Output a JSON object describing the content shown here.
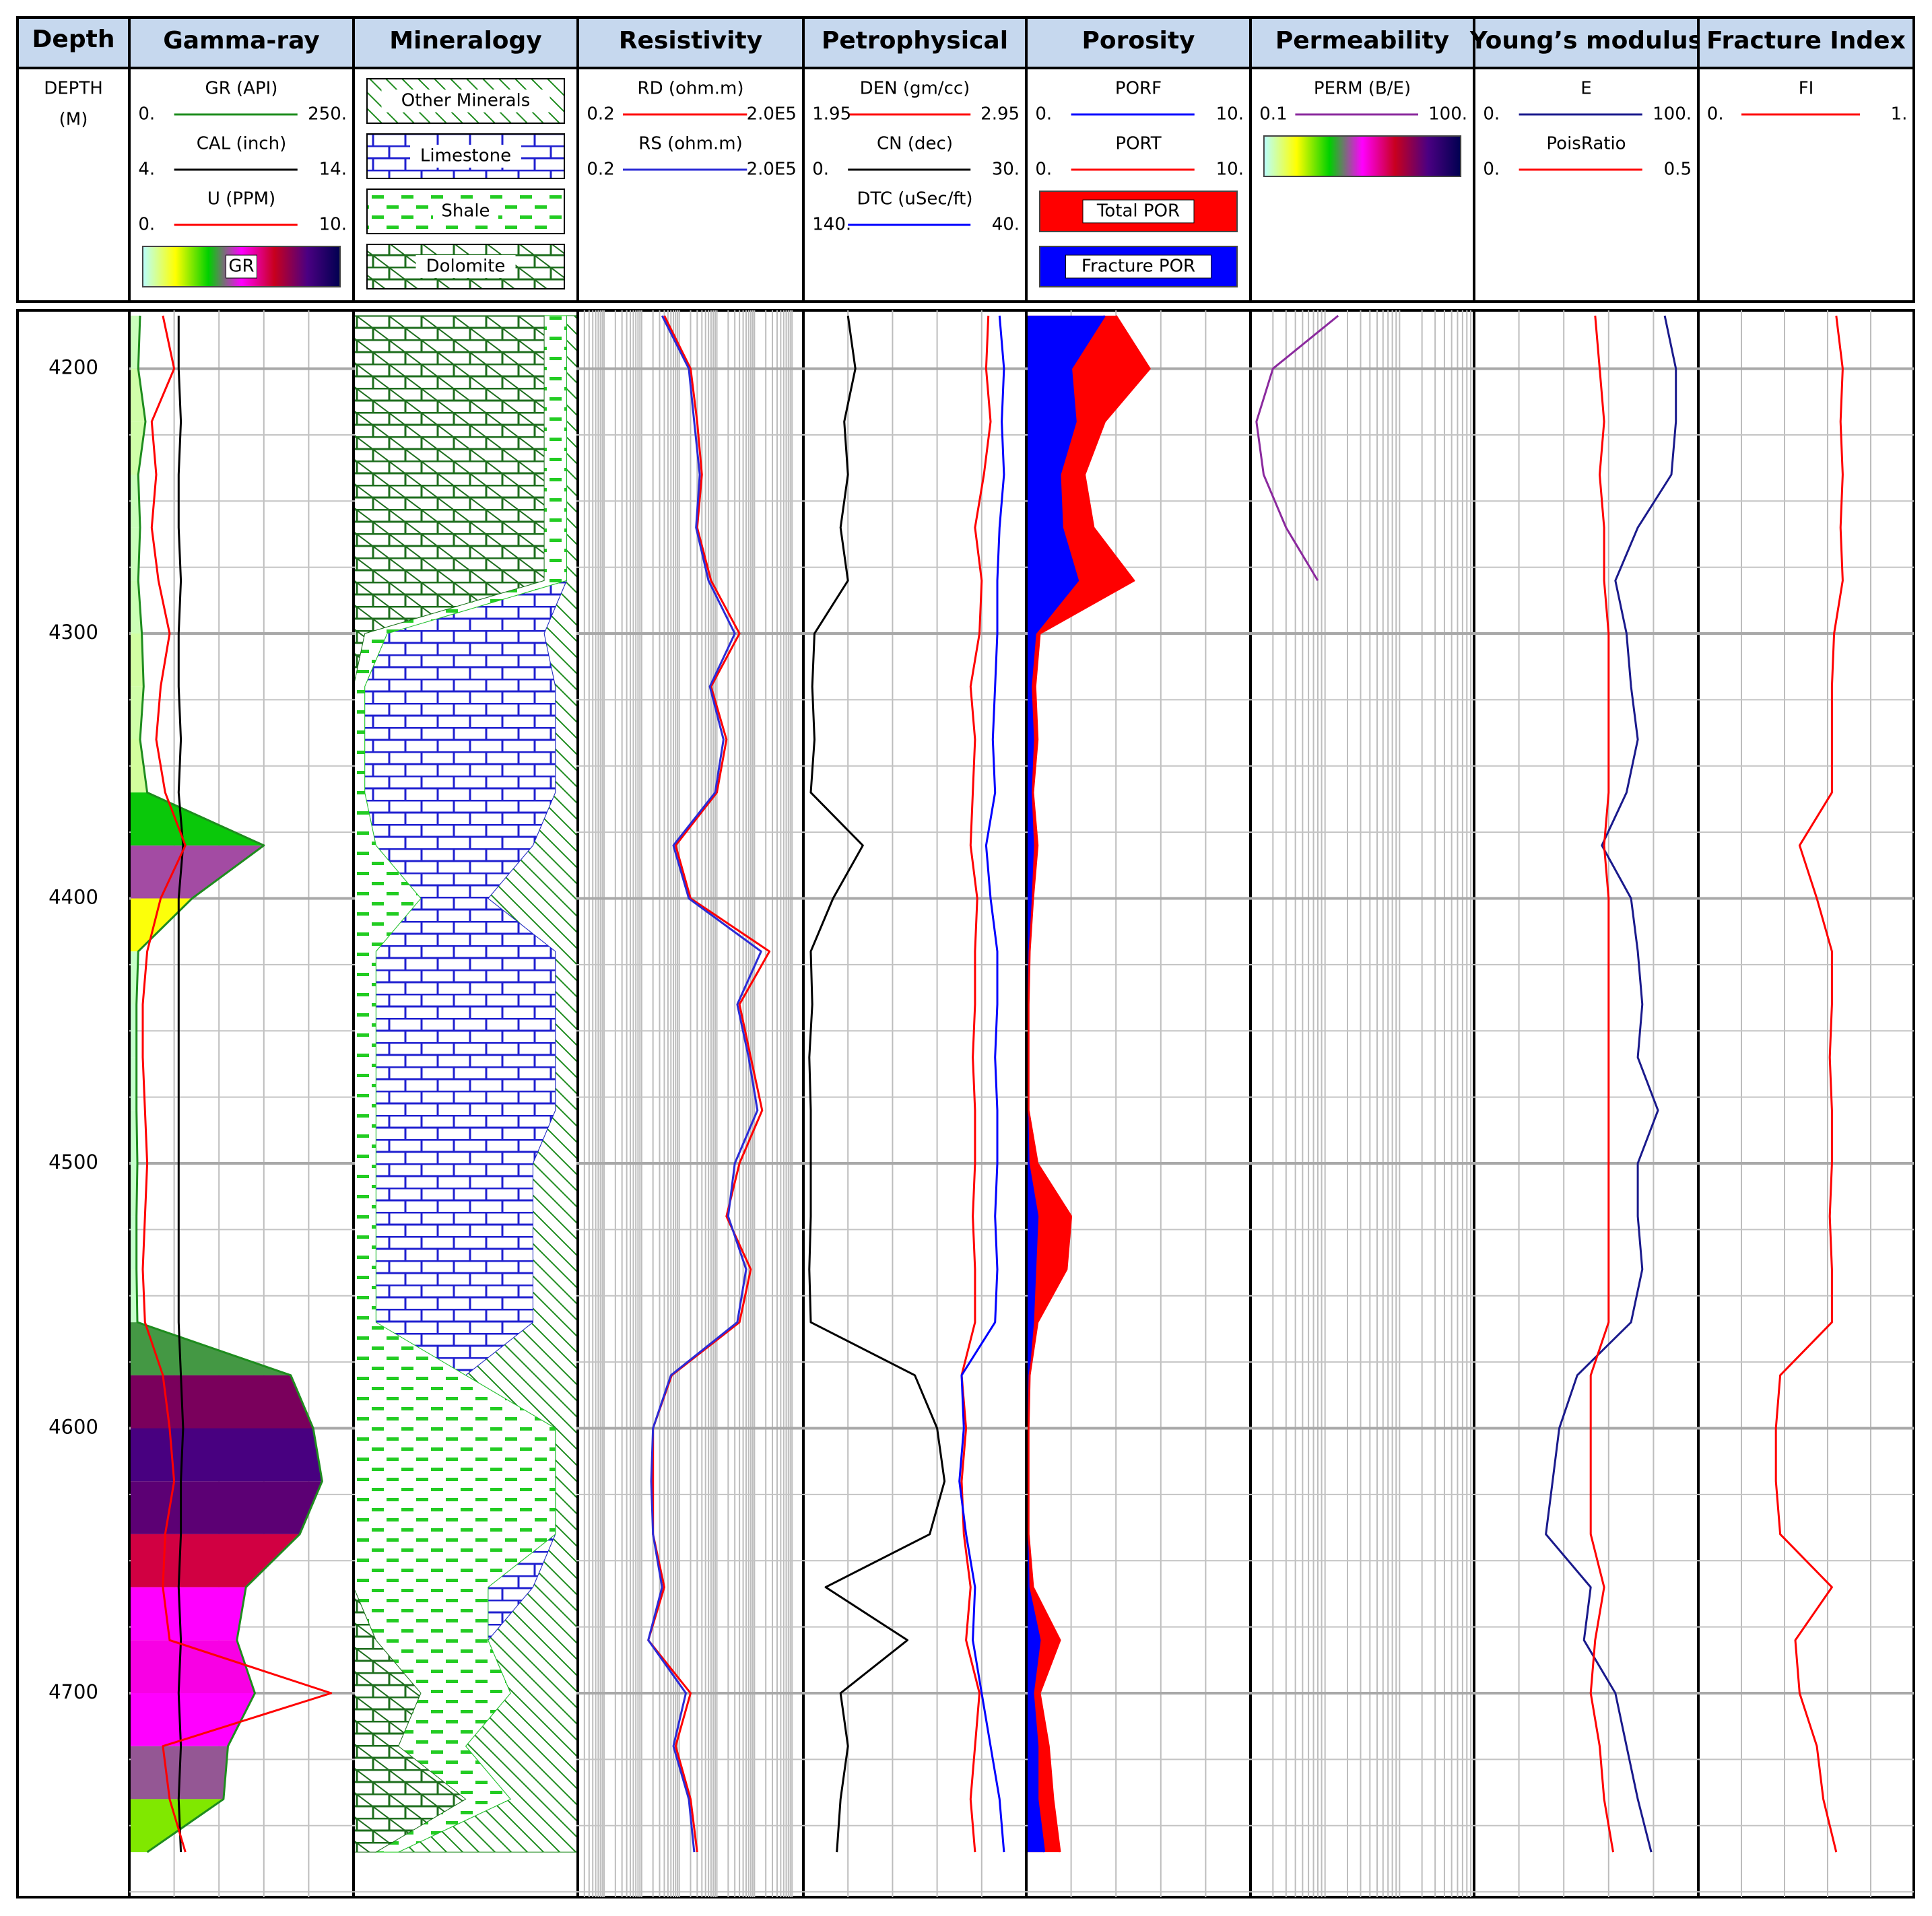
{
  "chart_data": {
    "type": "well-log",
    "depth_track": {
      "title": "Depth",
      "label": "DEPTH",
      "unit": "(M)"
    },
    "ylim": [
      4178,
      4777
    ],
    "yticks": [
      4200,
      4300,
      4400,
      4500,
      4600,
      4700
    ],
    "minor_yticks": [
      4200,
      4225,
      4250,
      4275,
      4300,
      4325,
      4350,
      4375,
      4400,
      4425,
      4450,
      4475,
      4500,
      4525,
      4550,
      4575,
      4600,
      4625,
      4650,
      4675,
      4700,
      4725,
      4750,
      4775
    ],
    "grid": true,
    "x": [
      4180,
      4200,
      4220,
      4240,
      4260,
      4280,
      4300,
      4320,
      4340,
      4360,
      4380,
      4400,
      4420,
      4440,
      4460,
      4480,
      4500,
      4520,
      4540,
      4560,
      4580,
      4600,
      4620,
      4640,
      4660,
      4680,
      4700,
      4720,
      4740,
      4760
    ],
    "tracks": [
      {
        "title": "Gamma-ray",
        "curves": [
          {
            "name": "GR (API)",
            "color": "#1e8c1e",
            "xlim": [
              0,
              250
            ],
            "xticks": [
              {
                "value": 0,
                "label": "0."
              },
              {
                "value": 250,
                "label": "250."
              }
            ],
            "values": [
              12,
              10,
              18,
              10,
              12,
              10,
              14,
              16,
              12,
              20,
              150,
              70,
              10,
              8,
              8,
              8,
              9,
              8,
              8,
              9,
              180,
              205,
              215,
              190,
              130,
              120,
              140,
              110,
              105,
              20
            ]
          },
          {
            "name": "CAL (inch)",
            "color": "#000000",
            "xlim": [
              4,
              14
            ],
            "xticks": [
              {
                "value": 4,
                "label": "4."
              },
              {
                "value": 14,
                "label": "14."
              }
            ],
            "values": [
              6.2,
              6.2,
              6.3,
              6.2,
              6.2,
              6.3,
              6.2,
              6.2,
              6.3,
              6.2,
              6.4,
              6.2,
              6.2,
              6.2,
              6.2,
              6.2,
              6.2,
              6.2,
              6.2,
              6.2,
              6.3,
              6.4,
              6.3,
              6.3,
              6.2,
              6.3,
              6.2,
              6.3,
              6.2,
              6.3
            ]
          },
          {
            "name": "U (PPM)",
            "color": "#ff0000",
            "xlim": [
              0,
              10
            ],
            "xticks": [
              {
                "value": 0,
                "label": "0."
              },
              {
                "value": 10,
                "label": "10."
              }
            ],
            "values": [
              1.5,
              2.0,
              1.0,
              1.2,
              1.0,
              1.3,
              1.8,
              1.4,
              1.2,
              1.6,
              2.5,
              1.4,
              0.8,
              0.6,
              0.6,
              0.7,
              0.8,
              0.7,
              0.6,
              0.7,
              1.5,
              1.8,
              2.0,
              1.6,
              1.5,
              1.8,
              9.0,
              1.5,
              1.8,
              2.5
            ]
          }
        ],
        "fills": [
          {
            "curve": 0,
            "label": "GR",
            "colormap": [
              "#b8ffff",
              "#ffff00",
              "#00d000",
              "#ff00ff",
              "#c8001e",
              "#4b0082",
              "#000050"
            ]
          }
        ]
      },
      {
        "title": "Mineralogy",
        "style": "stacked",
        "xlim": [
          0,
          1
        ],
        "series": [
          {
            "name": "Other Minerals",
            "color": "#1e8c1e",
            "pattern": "hatch",
            "values": [
              0.05,
              0.05,
              0.05,
              0.05,
              0.05,
              0.05,
              0.15,
              0.1,
              0.1,
              0.1,
              0.2,
              0.4,
              0.1,
              0.1,
              0.1,
              0.1,
              0.2,
              0.2,
              0.2,
              0.2,
              0.5,
              0.1,
              0.1,
              0.1,
              0.2,
              0.4,
              0.3,
              0.5,
              0.3,
              0.8
            ]
          },
          {
            "name": "Limestone",
            "color": "#2020d0",
            "pattern": "brick",
            "values": [
              0,
              0,
              0,
              0,
              0,
              0,
              0.7,
              0.85,
              0.85,
              0.85,
              0.7,
              0.3,
              0.8,
              0.8,
              0.8,
              0.8,
              0.7,
              0.7,
              0.7,
              0.7,
              0,
              0,
              0,
              0,
              0.2,
              0,
              0,
              0,
              0,
              0
            ]
          },
          {
            "name": "Shale",
            "color": "#22cc22",
            "pattern": "dash",
            "values": [
              0.1,
              0.1,
              0.1,
              0.1,
              0.1,
              0.1,
              0.1,
              0.05,
              0.05,
              0.05,
              0.1,
              0.3,
              0.1,
              0.1,
              0.1,
              0.1,
              0.1,
              0.1,
              0.1,
              0.1,
              0.5,
              0.9,
              0.9,
              0.9,
              0.6,
              0.5,
              0.4,
              0.3,
              0.2,
              0.1
            ]
          },
          {
            "name": "Dolomite",
            "color": "#1e6e1e",
            "pattern": "brick-hatch",
            "values": [
              0.85,
              0.85,
              0.85,
              0.85,
              0.85,
              0.85,
              0.05,
              0,
              0,
              0,
              0,
              0,
              0,
              0,
              0,
              0,
              0,
              0,
              0,
              0,
              0,
              0,
              0,
              0,
              0,
              0.1,
              0.3,
              0.2,
              0.5,
              0.1
            ]
          }
        ]
      },
      {
        "title": "Resistivity",
        "curves": [
          {
            "name": "RD (ohm.m)",
            "color": "#ff0000",
            "log": true,
            "xlim": [
              0.2,
              200000
            ],
            "xticks": [
              0.2,
              {
                "value": 200000,
                "label": "2.0E5"
              }
            ],
            "values": [
              40,
              200,
              300,
              400,
              300,
              700,
              4000,
              700,
              1800,
              1000,
              80,
              200,
              25000,
              4000,
              8000,
              16000,
              4000,
              1800,
              8000,
              4000,
              63,
              20,
              20,
              20,
              40,
              15,
              200,
              80,
              200,
              300
            ]
          },
          {
            "name": "RS (ohm.m)",
            "color": "#2b2bd6",
            "log": true,
            "xlim": [
              0.2,
              200000
            ],
            "xticks": [
              0.2,
              {
                "value": 200000,
                "label": "2.0E5"
              }
            ],
            "values": [
              35,
              180,
              250,
              350,
              280,
              600,
              3000,
              650,
              1500,
              900,
              70,
              180,
              15000,
              3500,
              7000,
              12000,
              3000,
              2000,
              6000,
              3500,
              60,
              20,
              18,
              20,
              35,
              15,
              150,
              70,
              180,
              250
            ]
          }
        ]
      },
      {
        "title": "Petrophysical",
        "curves": [
          {
            "name": "DEN (gm/cc)",
            "color": "#ff0000",
            "xlim": [
              1.95,
              2.95
            ],
            "xticks": [
              1.95,
              2.95
            ],
            "values": [
              2.78,
              2.77,
              2.79,
              2.76,
              2.72,
              2.75,
              2.74,
              2.7,
              2.72,
              2.71,
              2.7,
              2.73,
              2.72,
              2.72,
              2.71,
              2.72,
              2.72,
              2.71,
              2.72,
              2.72,
              2.66,
              2.68,
              2.66,
              2.67,
              2.7,
              2.68,
              2.74,
              2.72,
              2.7,
              2.72
            ]
          },
          {
            "name": "CN (dec)",
            "color": "#000000",
            "xlim": [
              0,
              30
            ],
            "xticks": [
              {
                "value": 0,
                "label": "0."
              },
              {
                "value": 30,
                "label": "30."
              }
            ],
            "values": [
              6,
              7,
              5.5,
              6,
              5,
              6,
              1.5,
              1.2,
              1.5,
              1,
              8,
              4,
              1,
              1.2,
              0.8,
              1,
              1,
              1,
              0.8,
              1,
              15,
              18,
              19,
              17,
              3,
              14,
              5,
              6,
              5,
              4.5
            ]
          },
          {
            "name": "DTC (uSec/ft)",
            "color": "#0000ff",
            "xlim": [
              140,
              40
            ],
            "xticks": [
              {
                "value": 140,
                "label": "140."
              },
              {
                "value": 40,
                "label": "40."
              }
            ],
            "values": [
              52,
              50,
              51,
              50,
              52,
              53,
              53,
              54,
              55,
              54,
              58,
              56,
              53,
              53,
              54,
              53,
              53,
              54,
              53,
              54,
              69,
              68,
              70,
              67,
              63,
              64,
              60,
              56,
              52,
              50
            ]
          }
        ]
      },
      {
        "title": "Porosity",
        "curves": [
          {
            "name": "PORF",
            "color": "#0000ff",
            "xlim": [
              0,
              10
            ],
            "xticks": [
              {
                "value": 0,
                "label": "0."
              },
              {
                "value": 10,
                "label": "10."
              }
            ],
            "values": [
              3.5,
              2,
              2.2,
              1.5,
              1.6,
              2.3,
              0.4,
              0.2,
              0.3,
              0.2,
              0.3,
              0.2,
              0.1,
              0.05,
              0.05,
              0.05,
              0.1,
              0.5,
              0.4,
              0.3,
              0.1,
              0.05,
              0.05,
              0.05,
              0.1,
              0.6,
              0.3,
              0.5,
              0.5,
              0.8
            ]
          },
          {
            "name": "PORT",
            "color": "#ff0000",
            "xlim": [
              0,
              10
            ],
            "xticks": [
              {
                "value": 0,
                "label": "0."
              },
              {
                "value": 10,
                "label": "10."
              }
            ],
            "values": [
              4,
              5.5,
              3.5,
              2.6,
              3,
              4.8,
              0.6,
              0.4,
              0.5,
              0.3,
              0.5,
              0.3,
              0.15,
              0.1,
              0.1,
              0.1,
              0.5,
              2,
              1.8,
              0.5,
              0.15,
              0.1,
              0.1,
              0.1,
              0.3,
              1.5,
              0.6,
              1,
              1.2,
              1.5
            ]
          }
        ],
        "fills": [
          {
            "curve": 1,
            "label": "Total POR",
            "color": "#ff0000"
          },
          {
            "curve": 0,
            "label": "Fracture POR",
            "color": "#0000ff"
          }
        ]
      },
      {
        "title": "Permeability",
        "curves": [
          {
            "name": "PERM (B/E)",
            "color": "#8b2a9e",
            "log": true,
            "xlim": [
              0.1,
              100
            ],
            "xticks": [
              0.1,
              {
                "value": 100,
                "label": "100."
              }
            ],
            "values": [
              1.5,
              0.2,
              0.12,
              0.15,
              0.3,
              0.8,
              null,
              null,
              null,
              null,
              null,
              null,
              null,
              null,
              null,
              null,
              null,
              null,
              null,
              null,
              null,
              null,
              null,
              null,
              null,
              null,
              null,
              null,
              null,
              null
            ]
          }
        ],
        "fills": [
          {
            "colormap": [
              "#b8ffff",
              "#ffff00",
              "#00d000",
              "#ff00ff",
              "#c8001e",
              "#4b0082",
              "#000050"
            ]
          }
        ]
      },
      {
        "title": "Young’s modulus",
        "curves": [
          {
            "name": "E",
            "color": "#1a1a8c",
            "xlim": [
              0,
              100
            ],
            "xticks": [
              {
                "value": 0,
                "label": "0."
              },
              {
                "value": 100,
                "label": "100."
              }
            ],
            "values": [
              85,
              90,
              90,
              88,
              73,
              63,
              68,
              70,
              73,
              68,
              57,
              70,
              73,
              75,
              73,
              82,
              73,
              73,
              75,
              70,
              46,
              38,
              35,
              32,
              52,
              49,
              63,
              68,
              73,
              79
            ]
          },
          {
            "name": "PoisRatio",
            "color": "#ff0000",
            "xlim": [
              0,
              0.5
            ],
            "xticks": [
              {
                "value": 0,
                "label": "0."
              },
              0.5
            ],
            "values": [
              0.27,
              0.28,
              0.29,
              0.28,
              0.29,
              0.29,
              0.3,
              0.3,
              0.3,
              0.3,
              0.29,
              0.3,
              0.3,
              0.3,
              0.3,
              0.3,
              0.3,
              0.3,
              0.3,
              0.3,
              0.26,
              0.26,
              0.26,
              0.26,
              0.29,
              0.27,
              0.26,
              0.28,
              0.29,
              0.31
            ]
          }
        ]
      },
      {
        "title": "Fracture Index",
        "curves": [
          {
            "name": "FI",
            "color": "#ff0000",
            "xlim": [
              0,
              1
            ],
            "xticks": [
              {
                "value": 0,
                "label": "0."
              },
              {
                "value": 1,
                "label": "1."
              }
            ],
            "values": [
              0.64,
              0.67,
              0.66,
              0.67,
              0.66,
              0.67,
              0.63,
              0.62,
              0.62,
              0.62,
              0.47,
              0.55,
              0.62,
              0.62,
              0.61,
              0.62,
              0.62,
              0.61,
              0.62,
              0.62,
              0.38,
              0.36,
              0.36,
              0.38,
              0.62,
              0.45,
              0.47,
              0.55,
              0.58,
              0.64
            ]
          }
        ]
      }
    ]
  }
}
